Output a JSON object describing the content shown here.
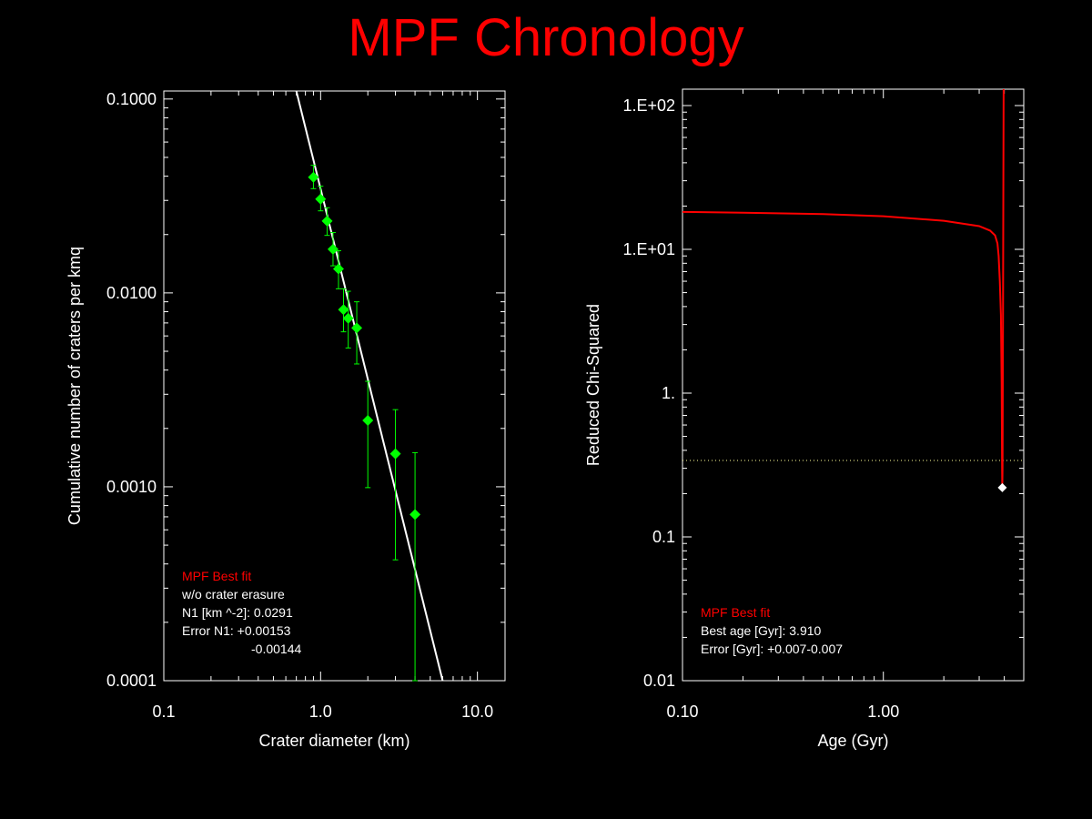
{
  "title": "MPF Chronology",
  "chart_data": [
    {
      "type": "scatter",
      "name": "crater-size-frequency",
      "xlabel": "Crater diameter (km)",
      "ylabel": "Cumulative number of craters per kmq",
      "xscale": "log",
      "yscale": "log",
      "xlim": [
        0.1,
        15
      ],
      "ylim": [
        0.0001,
        0.11
      ],
      "xticks": [
        0.1,
        1.0,
        10.0
      ],
      "xtick_labels": [
        "0.1",
        "1.0",
        "10.0"
      ],
      "yticks": [
        0.0001,
        0.001,
        0.01,
        0.1
      ],
      "ytick_labels": [
        "0.0001",
        "0.0010",
        "0.0100",
        "0.1000"
      ],
      "points": [
        {
          "x": 0.9,
          "y": 0.0395,
          "lo": 0.0345,
          "hi": 0.0455
        },
        {
          "x": 1.0,
          "y": 0.0305,
          "lo": 0.0265,
          "hi": 0.0355
        },
        {
          "x": 1.1,
          "y": 0.0235,
          "lo": 0.0198,
          "hi": 0.0275
        },
        {
          "x": 1.2,
          "y": 0.0168,
          "lo": 0.0138,
          "hi": 0.0205
        },
        {
          "x": 1.3,
          "y": 0.0133,
          "lo": 0.0105,
          "hi": 0.0165
        },
        {
          "x": 1.4,
          "y": 0.0082,
          "lo": 0.0063,
          "hi": 0.0105
        },
        {
          "x": 1.5,
          "y": 0.0074,
          "lo": 0.0052,
          "hi": 0.0102
        },
        {
          "x": 1.7,
          "y": 0.0066,
          "lo": 0.0043,
          "hi": 0.009
        },
        {
          "x": 2.0,
          "y": 0.0022,
          "lo": 0.00099,
          "hi": 0.0035
        },
        {
          "x": 3.0,
          "y": 0.00148,
          "lo": 0.00042,
          "hi": 0.0025
        },
        {
          "x": 4.0,
          "y": 0.00072,
          "lo": 0.0001,
          "hi": 0.0015
        }
      ],
      "fit_line": [
        [
          0.7,
          0.11
        ],
        [
          6.0,
          0.0001
        ]
      ],
      "annotations": [
        {
          "text": "MPF Best fit",
          "color": "#ff0000"
        },
        {
          "text": "w/o crater erasure",
          "color": "#ffffff"
        },
        {
          "text": "N1 [km ^-2]: 0.0291",
          "color": "#ffffff"
        },
        {
          "text": "Error N1: +0.00153",
          "color": "#ffffff"
        },
        {
          "text": "-0.00144",
          "color": "#ffffff"
        }
      ],
      "colors": {
        "points": "#00ff00",
        "fit": "#ffffff",
        "frame": "#ffffff"
      }
    },
    {
      "type": "line",
      "name": "chi-squared-vs-age",
      "xlabel": "Age (Gyr)",
      "ylabel": "Reduced Chi-Squared",
      "xscale": "log",
      "yscale": "log",
      "xlim": [
        0.1,
        5.0
      ],
      "ylim": [
        0.01,
        130
      ],
      "xticks": [
        0.1,
        1.0
      ],
      "xtick_labels": [
        "0.10",
        "1.00"
      ],
      "yticks": [
        0.01,
        0.1,
        1,
        10,
        100
      ],
      "ytick_labels": [
        "0.01",
        "0.1",
        "1.",
        "1.E+01",
        "1.E+02"
      ],
      "curve": [
        [
          0.1,
          18.2
        ],
        [
          0.2,
          18.0
        ],
        [
          0.5,
          17.6
        ],
        [
          1.0,
          17.0
        ],
        [
          2.0,
          15.8
        ],
        [
          3.0,
          14.5
        ],
        [
          3.4,
          13.5
        ],
        [
          3.6,
          12.5
        ],
        [
          3.7,
          11.0
        ],
        [
          3.75,
          9.0
        ],
        [
          3.8,
          6.0
        ],
        [
          3.85,
          3.5
        ],
        [
          3.88,
          1.2
        ],
        [
          3.9,
          0.3
        ],
        [
          3.91,
          0.22
        ],
        [
          3.92,
          0.3
        ],
        [
          3.94,
          3.0
        ],
        [
          3.96,
          30.0
        ],
        [
          3.97,
          130
        ]
      ],
      "best_point": {
        "x": 3.91,
        "y": 0.22
      },
      "reference_level": 0.34,
      "annotations": [
        {
          "text": "MPF Best fit",
          "color": "#ff0000"
        },
        {
          "text": "Best age [Gyr]: 3.910",
          "color": "#ffffff"
        },
        {
          "text": "Error [Gyr]: +0.007-0.007",
          "color": "#ffffff"
        }
      ],
      "colors": {
        "curve": "#ff0000",
        "best": "#ffffff",
        "reference": "#ffff99",
        "frame": "#ffffff"
      }
    }
  ]
}
